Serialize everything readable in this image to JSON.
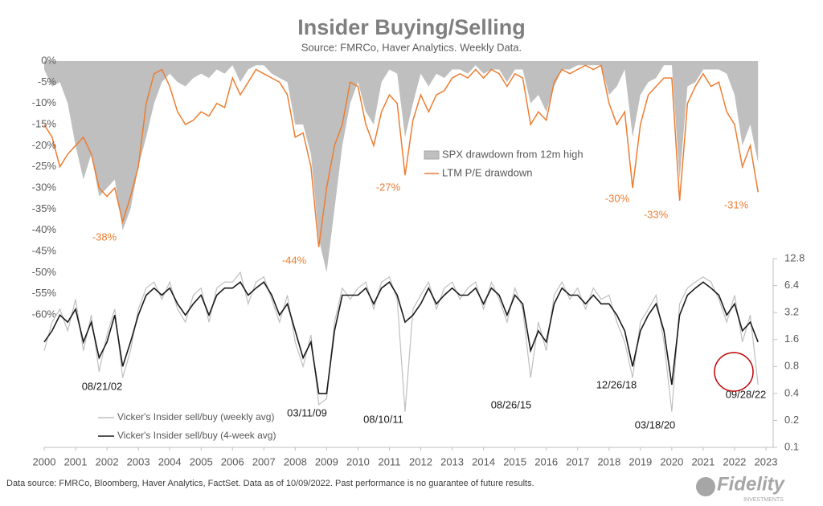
{
  "title": "Insider Buying/Selling",
  "subtitle": "Source: FMRCo, Haver Analytics. Weekly Data.",
  "footnote": "Data source: FMRCo, Bloomberg, Haver Analytics, FactSet. Data as of 10/09/2022. Past performance is no guarantee of future results.",
  "logo": {
    "name": "Fidelity",
    "tagline": "INVESTMENTS"
  },
  "chart_data": [
    {
      "type": "area",
      "x": [
        2000,
        2000.25,
        2000.5,
        2000.75,
        2001,
        2001.25,
        2001.5,
        2001.75,
        2002,
        2002.25,
        2002.5,
        2002.75,
        2003,
        2003.25,
        2003.5,
        2003.75,
        2004,
        2004.25,
        2004.5,
        2004.75,
        2005,
        2005.25,
        2005.5,
        2005.75,
        2006,
        2006.25,
        2006.5,
        2006.75,
        2007,
        2007.25,
        2007.5,
        2007.75,
        2008,
        2008.25,
        2008.5,
        2008.75,
        2009,
        2009.25,
        2009.5,
        2009.75,
        2010,
        2010.25,
        2010.5,
        2010.75,
        2011,
        2011.25,
        2011.5,
        2011.75,
        2012,
        2012.25,
        2012.5,
        2012.75,
        2013,
        2013.25,
        2013.5,
        2013.75,
        2014,
        2014.25,
        2014.5,
        2014.75,
        2015,
        2015.25,
        2015.5,
        2015.75,
        2016,
        2016.25,
        2016.5,
        2016.75,
        2017,
        2017.25,
        2017.5,
        2017.75,
        2018,
        2018.25,
        2018.5,
        2018.75,
        2019,
        2019.25,
        2019.5,
        2019.75,
        2020,
        2020.25,
        2020.5,
        2020.75,
        2021,
        2021.25,
        2021.5,
        2021.75,
        2022,
        2022.25,
        2022.5,
        2022.75
      ],
      "series": [
        {
          "name": "SPX drawdown from 12m high",
          "style": "area",
          "color": "#bfbfbf",
          "values": [
            -2,
            -6,
            -5,
            -10,
            -20,
            -28,
            -22,
            -32,
            -30,
            -28,
            -40,
            -35,
            -25,
            -18,
            -10,
            -5,
            -3,
            -5,
            -6,
            -4,
            -3,
            -4,
            -2,
            -3,
            -1,
            -5,
            -2,
            -1,
            -1,
            -3,
            -4,
            -5,
            -15,
            -15,
            -22,
            -42,
            -50,
            -35,
            -20,
            -10,
            -5,
            -12,
            -15,
            -5,
            -2,
            -3,
            -18,
            -10,
            -3,
            -6,
            -3,
            -4,
            -2,
            -2,
            -3,
            -1,
            -3,
            -2,
            -2,
            -5,
            -2,
            -2,
            -10,
            -8,
            -12,
            -6,
            -2,
            -2,
            -1,
            -1,
            -1,
            -1,
            -8,
            -6,
            -2,
            -18,
            -8,
            -5,
            -4,
            -1,
            -1,
            -28,
            -6,
            -5,
            -2,
            -2,
            -2,
            -3,
            -8,
            -20,
            -15,
            -24
          ]
        },
        {
          "name": "LTM P/E drawdown",
          "style": "line",
          "color": "#ed7d31",
          "values": [
            -15,
            -18,
            -25,
            -22,
            -20,
            -18,
            -22,
            -30,
            -32,
            -30,
            -38,
            -32,
            -25,
            -10,
            -3,
            -2,
            -6,
            -12,
            -15,
            -14,
            -12,
            -13,
            -10,
            -11,
            -4,
            -8,
            -5,
            -2,
            -3,
            -4,
            -5,
            -8,
            -18,
            -17,
            -25,
            -44,
            -30,
            -20,
            -15,
            -5,
            -6,
            -15,
            -20,
            -12,
            -8,
            -10,
            -27,
            -14,
            -8,
            -12,
            -8,
            -7,
            -4,
            -3,
            -4,
            -2,
            -4,
            -2,
            -3,
            -6,
            -3,
            -4,
            -15,
            -12,
            -14,
            -5,
            -2,
            -3,
            -2,
            -1,
            -2,
            -1,
            -10,
            -15,
            -12,
            -30,
            -15,
            -8,
            -6,
            -4,
            -4,
            -33,
            -10,
            -6,
            -3,
            -6,
            -5,
            -12,
            -15,
            -25,
            -20,
            -31
          ]
        }
      ],
      "ylim": [
        -60,
        0
      ],
      "yticks": [
        {
          "value": 0,
          "label": "0%"
        },
        {
          "value": -5,
          "label": "-5%"
        },
        {
          "value": -10,
          "label": "-10%"
        },
        {
          "value": -15,
          "label": "-15%"
        },
        {
          "value": -20,
          "label": "-20%"
        },
        {
          "value": -25,
          "label": "-25%"
        },
        {
          "value": -30,
          "label": "-30%"
        },
        {
          "value": -35,
          "label": "-35%"
        },
        {
          "value": -40,
          "label": "-40%"
        },
        {
          "value": -45,
          "label": "-45%"
        },
        {
          "value": -50,
          "label": "-50%"
        },
        {
          "value": -55,
          "label": "-55%"
        },
        {
          "value": -60,
          "label": "-60%"
        }
      ],
      "xlim": [
        2000,
        2023
      ],
      "annotations": [
        "-38%",
        "-44%",
        "-27%",
        "-30%",
        "-33%",
        "-31%"
      ]
    },
    {
      "type": "line",
      "x": [
        2000,
        2000.25,
        2000.5,
        2000.75,
        2001,
        2001.25,
        2001.5,
        2001.75,
        2002,
        2002.25,
        2002.5,
        2002.75,
        2003,
        2003.25,
        2003.5,
        2003.75,
        2004,
        2004.25,
        2004.5,
        2004.75,
        2005,
        2005.25,
        2005.5,
        2005.75,
        2006,
        2006.25,
        2006.5,
        2006.75,
        2007,
        2007.25,
        2007.5,
        2007.75,
        2008,
        2008.25,
        2008.5,
        2008.75,
        2009,
        2009.25,
        2009.5,
        2009.75,
        2010,
        2010.25,
        2010.5,
        2010.75,
        2011,
        2011.25,
        2011.5,
        2011.75,
        2012,
        2012.25,
        2012.5,
        2012.75,
        2013,
        2013.25,
        2013.5,
        2013.75,
        2014,
        2014.25,
        2014.5,
        2014.75,
        2015,
        2015.25,
        2015.5,
        2015.75,
        2016,
        2016.25,
        2016.5,
        2016.75,
        2017,
        2017.25,
        2017.5,
        2017.75,
        2018,
        2018.25,
        2018.5,
        2018.75,
        2019,
        2019.25,
        2019.5,
        2019.75,
        2020,
        2020.25,
        2020.5,
        2020.75,
        2021,
        2021.25,
        2021.5,
        2021.75,
        2022,
        2022.25,
        2022.5,
        2022.75
      ],
      "series": [
        {
          "name": "Vicker's Insider sell/buy (weekly avg)",
          "color": "#bfbfbf",
          "axis": "y2",
          "values": [
            1.2,
            2.5,
            3.5,
            2,
            4.5,
            1.2,
            3,
            0.7,
            1.8,
            3.5,
            0.6,
            1.2,
            3.5,
            6,
            7,
            4.5,
            7,
            3.5,
            2.5,
            5,
            6,
            2.5,
            6,
            7,
            7,
            9,
            4,
            7,
            8,
            4.5,
            2.5,
            5,
            1.5,
            0.8,
            1.8,
            0.3,
            0.35,
            2.5,
            6,
            4.5,
            6,
            7,
            3.5,
            7,
            8,
            4.5,
            0.25,
            3.5,
            5,
            7,
            3.5,
            6,
            7,
            4.5,
            6,
            7,
            3.5,
            7,
            4.5,
            2.5,
            6,
            3.5,
            0.6,
            2.5,
            1.2,
            5,
            7,
            4.5,
            6,
            3.5,
            6,
            4.5,
            5,
            2.5,
            1.5,
            0.6,
            2.5,
            3.5,
            5,
            1.5,
            0.25,
            4,
            6,
            7,
            8,
            7,
            4.5,
            2.5,
            5,
            1.5,
            3,
            0.5
          ]
        },
        {
          "name": "Vicker's Insider sell/buy (4-week avg)",
          "color": "#1a1a1a",
          "axis": "y2",
          "values": [
            1.5,
            2,
            3,
            2.5,
            3.5,
            1.5,
            2.5,
            1,
            1.5,
            3,
            0.8,
            1.5,
            3,
            5,
            6,
            5,
            6,
            4,
            3,
            4,
            5,
            3,
            5,
            6,
            6,
            7,
            5,
            6,
            7,
            5,
            3,
            4,
            2,
            1,
            1.5,
            0.4,
            0.4,
            2,
            5,
            5,
            5,
            6,
            4,
            6,
            7,
            5,
            2.5,
            3,
            4,
            6,
            4,
            5,
            6,
            5,
            5,
            6,
            4,
            6,
            5,
            3,
            5,
            4,
            1.2,
            2,
            1.5,
            4,
            6,
            5,
            5,
            4,
            5,
            4,
            4,
            3,
            2,
            0.8,
            2,
            3,
            4,
            2,
            0.5,
            3,
            5,
            6,
            7,
            6,
            5,
            3,
            4,
            2,
            2.5,
            1.5
          ]
        }
      ],
      "log_scale": true,
      "y2lim": [
        0.1,
        12.8
      ],
      "y2ticks": [
        12.8,
        6.4,
        3.2,
        1.6,
        0.8,
        0.4,
        0.2,
        0.1
      ],
      "xlim": [
        2000,
        2023
      ],
      "xticks": [
        2000,
        2001,
        2002,
        2003,
        2004,
        2005,
        2006,
        2007,
        2008,
        2009,
        2010,
        2011,
        2012,
        2013,
        2014,
        2015,
        2016,
        2017,
        2018,
        2019,
        2020,
        2021,
        2022,
        2023
      ],
      "annotations": [
        "08/21/02",
        "03/11/09",
        "08/10/11",
        "08/26/15",
        "12/26/18",
        "03/18/20",
        "09/28/22"
      ]
    }
  ]
}
